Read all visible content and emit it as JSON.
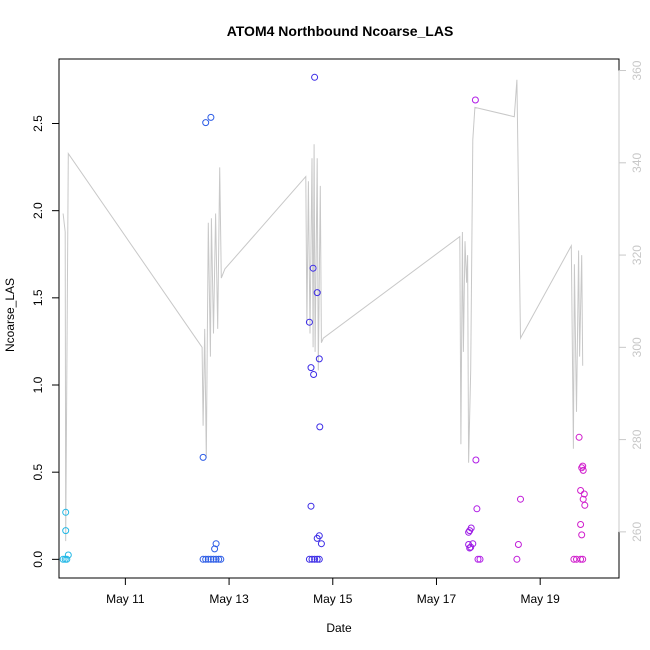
{
  "chart_data": {
    "type": "scatter",
    "title": "ATOM4 Northbound Ncoarse_LAS",
    "xlabel": "Date",
    "ylabel": "Ncoarse_LAS",
    "ylabel_right": "",
    "x_unit": "days in May",
    "xlim": [
      9.72,
      20.52
    ],
    "ylim": [
      -0.107,
      2.87
    ],
    "ylim_right": [
      250.0,
      362.5
    ],
    "x_ticks": [
      {
        "value": 11,
        "label": "May 11"
      },
      {
        "value": 13,
        "label": "May 13"
      },
      {
        "value": 15,
        "label": "May 15"
      },
      {
        "value": 17,
        "label": "May 17"
      },
      {
        "value": 19,
        "label": "May 19"
      }
    ],
    "y_ticks": [
      {
        "value": 0.0,
        "label": "0.0"
      },
      {
        "value": 0.5,
        "label": "0.5"
      },
      {
        "value": 1.0,
        "label": "1.0"
      },
      {
        "value": 1.5,
        "label": "1.5"
      },
      {
        "value": 2.0,
        "label": "2.0"
      },
      {
        "value": 2.5,
        "label": "2.5"
      }
    ],
    "y_ticks_right": [
      {
        "value": 260,
        "label": "260"
      },
      {
        "value": 280,
        "label": "280"
      },
      {
        "value": 300,
        "label": "300"
      },
      {
        "value": 320,
        "label": "320"
      },
      {
        "value": 340,
        "label": "340"
      },
      {
        "value": 360,
        "label": "360"
      }
    ],
    "colors": {
      "line": "#c8c8c8",
      "right_axis": "#c8c8c8",
      "frame": "#000000"
    },
    "series": [
      {
        "type": "scatter",
        "points": [
          {
            "x": 9.85,
            "y": 0.27,
            "color": "#22b8e6"
          },
          {
            "x": 9.85,
            "y": 0.165,
            "color": "#22b8e6"
          },
          {
            "x": 9.8,
            "y": 0.0,
            "color": "#22b8e6"
          },
          {
            "x": 9.84,
            "y": 0.0,
            "color": "#22b8e6"
          },
          {
            "x": 9.87,
            "y": 0.0,
            "color": "#22b8e6"
          },
          {
            "x": 9.9,
            "y": 0.025,
            "color": "#22b8e6"
          },
          {
            "x": 12.5,
            "y": 0.585,
            "color": "#2c5ce6"
          },
          {
            "x": 12.55,
            "y": 2.505,
            "color": "#2c5ce6"
          },
          {
            "x": 12.65,
            "y": 2.535,
            "color": "#2c5ce6"
          },
          {
            "x": 12.72,
            "y": 0.06,
            "color": "#2c5ce6"
          },
          {
            "x": 12.75,
            "y": 0.09,
            "color": "#2c5ce6"
          },
          {
            "x": 12.5,
            "y": 0.0,
            "color": "#2c5ce6"
          },
          {
            "x": 12.55,
            "y": 0.0,
            "color": "#2c5ce6"
          },
          {
            "x": 12.6,
            "y": 0.0,
            "color": "#2c5ce6"
          },
          {
            "x": 12.65,
            "y": 0.0,
            "color": "#2c5ce6"
          },
          {
            "x": 12.7,
            "y": 0.0,
            "color": "#2c5ce6"
          },
          {
            "x": 12.75,
            "y": 0.0,
            "color": "#2c5ce6"
          },
          {
            "x": 12.8,
            "y": 0.0,
            "color": "#2c5ce6"
          },
          {
            "x": 12.84,
            "y": 0.0,
            "color": "#2c5ce6"
          },
          {
            "x": 14.55,
            "y": 1.36,
            "color": "#3c2ce6"
          },
          {
            "x": 14.58,
            "y": 0.305,
            "color": "#3c2ce6"
          },
          {
            "x": 14.58,
            "y": 1.1,
            "color": "#3c2ce6"
          },
          {
            "x": 14.62,
            "y": 1.67,
            "color": "#3c2ce6"
          },
          {
            "x": 14.63,
            "y": 1.06,
            "color": "#3c2ce6"
          },
          {
            "x": 14.65,
            "y": 2.765,
            "color": "#3c2ce6"
          },
          {
            "x": 14.7,
            "y": 1.53,
            "color": "#3c2ce6"
          },
          {
            "x": 14.7,
            "y": 0.12,
            "color": "#3c2ce6"
          },
          {
            "x": 14.74,
            "y": 1.15,
            "color": "#3c2ce6"
          },
          {
            "x": 14.74,
            "y": 0.135,
            "color": "#3c2ce6"
          },
          {
            "x": 14.75,
            "y": 0.76,
            "color": "#3c2ce6"
          },
          {
            "x": 14.78,
            "y": 0.09,
            "color": "#3c2ce6"
          },
          {
            "x": 14.55,
            "y": 0.0,
            "color": "#3c2ce6"
          },
          {
            "x": 14.6,
            "y": 0.0,
            "color": "#3c2ce6"
          },
          {
            "x": 14.65,
            "y": 0.0,
            "color": "#3c2ce6"
          },
          {
            "x": 14.7,
            "y": 0.0,
            "color": "#3c2ce6"
          },
          {
            "x": 14.74,
            "y": 0.0,
            "color": "#3c2ce6"
          },
          {
            "x": 17.62,
            "y": 0.155,
            "color": "#9d1ce6"
          },
          {
            "x": 17.64,
            "y": 0.165,
            "color": "#9d1ce6"
          },
          {
            "x": 17.67,
            "y": 0.18,
            "color": "#9d1ce6"
          },
          {
            "x": 17.62,
            "y": 0.085,
            "color": "#9d1ce6"
          },
          {
            "x": 17.66,
            "y": 0.07,
            "color": "#9d1ce6"
          },
          {
            "x": 17.64,
            "y": 0.065,
            "color": "#9d1ce6"
          },
          {
            "x": 17.7,
            "y": 0.09,
            "color": "#9d1ce6"
          },
          {
            "x": 17.75,
            "y": 2.635,
            "color": "#b01ce6"
          },
          {
            "x": 17.76,
            "y": 0.57,
            "color": "#b01ce6"
          },
          {
            "x": 17.78,
            "y": 0.29,
            "color": "#b01ce6"
          },
          {
            "x": 17.8,
            "y": 0.0,
            "color": "#b01ce6"
          },
          {
            "x": 17.84,
            "y": 0.0,
            "color": "#b01ce6"
          },
          {
            "x": 18.58,
            "y": 0.085,
            "color": "#c01cd8"
          },
          {
            "x": 18.62,
            "y": 0.345,
            "color": "#c01cd8"
          },
          {
            "x": 18.55,
            "y": 0.0,
            "color": "#c01cd8"
          },
          {
            "x": 19.65,
            "y": 0.0,
            "color": "#d01ccc"
          },
          {
            "x": 19.7,
            "y": 0.0,
            "color": "#d01ccc"
          },
          {
            "x": 19.78,
            "y": 0.0,
            "color": "#d01ccc"
          },
          {
            "x": 19.82,
            "y": 0.0,
            "color": "#d01ccc"
          },
          {
            "x": 19.75,
            "y": 0.7,
            "color": "#d01ccc"
          },
          {
            "x": 19.78,
            "y": 0.395,
            "color": "#d01ccc"
          },
          {
            "x": 19.8,
            "y": 0.525,
            "color": "#d01ccc"
          },
          {
            "x": 19.82,
            "y": 0.535,
            "color": "#d01ccc"
          },
          {
            "x": 19.83,
            "y": 0.51,
            "color": "#d01ccc"
          },
          {
            "x": 19.85,
            "y": 0.375,
            "color": "#d01ccc"
          },
          {
            "x": 19.83,
            "y": 0.345,
            "color": "#d01ccc"
          },
          {
            "x": 19.86,
            "y": 0.31,
            "color": "#d01ccc"
          },
          {
            "x": 19.78,
            "y": 0.2,
            "color": "#d01ccc"
          },
          {
            "x": 19.8,
            "y": 0.14,
            "color": "#d01ccc"
          }
        ]
      },
      {
        "type": "line",
        "axis": "right",
        "points": [
          [
            9.8,
            329
          ],
          [
            9.84,
            325
          ],
          [
            9.85,
            258
          ],
          [
            9.9,
            342
          ],
          [
            12.48,
            300
          ],
          [
            12.5,
            283
          ],
          [
            12.53,
            304
          ],
          [
            12.56,
            276
          ],
          [
            12.6,
            327
          ],
          [
            12.64,
            298
          ],
          [
            12.66,
            328
          ],
          [
            12.7,
            303
          ],
          [
            12.74,
            329
          ],
          [
            12.78,
            304
          ],
          [
            12.82,
            339
          ],
          [
            12.85,
            315
          ],
          [
            12.92,
            317
          ],
          [
            14.48,
            337
          ],
          [
            14.5,
            305
          ],
          [
            14.53,
            336
          ],
          [
            14.56,
            303
          ],
          [
            14.6,
            341
          ],
          [
            14.62,
            300
          ],
          [
            14.64,
            344
          ],
          [
            14.66,
            299
          ],
          [
            14.7,
            341
          ],
          [
            14.72,
            295
          ],
          [
            14.76,
            335
          ],
          [
            14.78,
            301
          ],
          [
            14.82,
            302
          ],
          [
            17.45,
            324
          ],
          [
            17.47,
            279
          ],
          [
            17.5,
            325
          ],
          [
            17.52,
            299
          ],
          [
            17.55,
            323
          ],
          [
            17.58,
            314
          ],
          [
            17.6,
            320
          ],
          [
            17.62,
            275
          ],
          [
            17.66,
            295
          ],
          [
            17.7,
            345
          ],
          [
            17.74,
            352
          ],
          [
            18.5,
            350
          ],
          [
            18.55,
            358
          ],
          [
            18.62,
            302
          ],
          [
            19.6,
            322
          ],
          [
            19.64,
            278
          ],
          [
            19.66,
            318
          ],
          [
            19.7,
            286
          ],
          [
            19.74,
            321
          ],
          [
            19.76,
            298
          ],
          [
            19.8,
            320
          ],
          [
            19.82,
            296
          ]
        ]
      }
    ]
  }
}
